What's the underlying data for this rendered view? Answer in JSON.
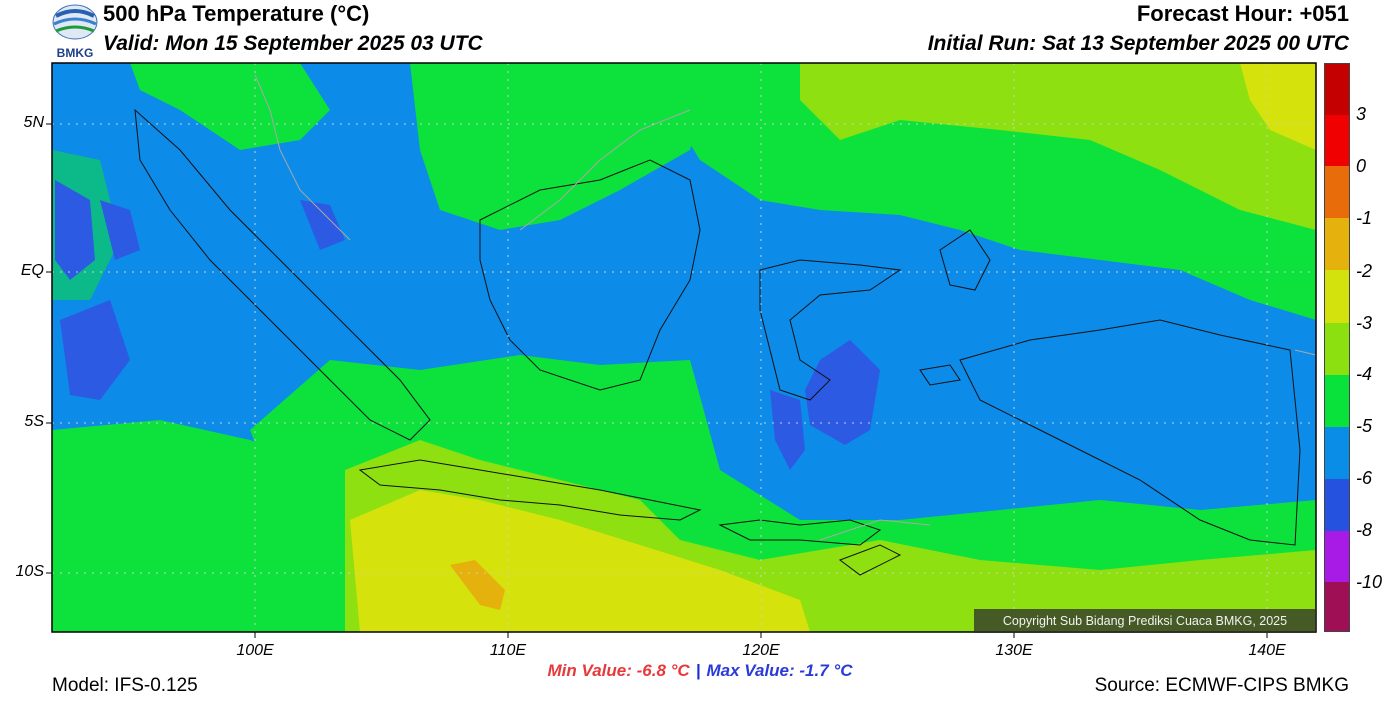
{
  "header": {
    "org_logo_text": "BMKG",
    "title": "500 hPa Temperature (°C)",
    "valid": "Valid: Mon 15 September 2025 03 UTC",
    "forecast_hour": "Forecast Hour: +051",
    "initial_run": "Initial Run: Sat 13 September 2025 00 UTC"
  },
  "map": {
    "lat_range": [
      -12,
      7
    ],
    "lon_range": [
      92,
      142
    ],
    "lat_ticks": [
      {
        "value": 5,
        "label": "5N"
      },
      {
        "value": 0,
        "label": "EQ"
      },
      {
        "value": -5,
        "label": "5S"
      },
      {
        "value": -10,
        "label": "10S"
      }
    ],
    "lon_ticks": [
      {
        "value": 100,
        "label": "100E"
      },
      {
        "value": 110,
        "label": "110E"
      },
      {
        "value": 120,
        "label": "120E"
      },
      {
        "value": 130,
        "label": "130E"
      },
      {
        "value": 140,
        "label": "140E"
      }
    ],
    "gridlines": true
  },
  "colorbar": {
    "labels": [
      "3",
      "0",
      "-1",
      "-2",
      "-3",
      "-4",
      "-5",
      "-6",
      "-8",
      "-10"
    ],
    "colors": [
      "#c40000",
      "#f00000",
      "#f51010",
      "#e86d0a",
      "#e5b10d",
      "#d3e20c",
      "#8ce00f",
      "#08e23a",
      "#0a8de6",
      "#2652e0",
      "#a81ae6",
      "#9e0f55"
    ]
  },
  "field_colors": {
    "dark_blue": "#2d5ae2",
    "blue": "#0c8be8",
    "green": "#0ce23b",
    "light_green": "#8ee010",
    "yellow": "#d6e20c",
    "orange": "#e5b10d"
  },
  "copyright": "Copyright Sub Bidang Prediksi Cuaca BMKG, 2025",
  "min_value": "Min Value: -6.8 °C",
  "separator": "|",
  "max_value": "Max Value: -1.7 °C",
  "model": "Model: IFS-0.125",
  "source": "Source: ECMWF-CIPS BMKG"
}
